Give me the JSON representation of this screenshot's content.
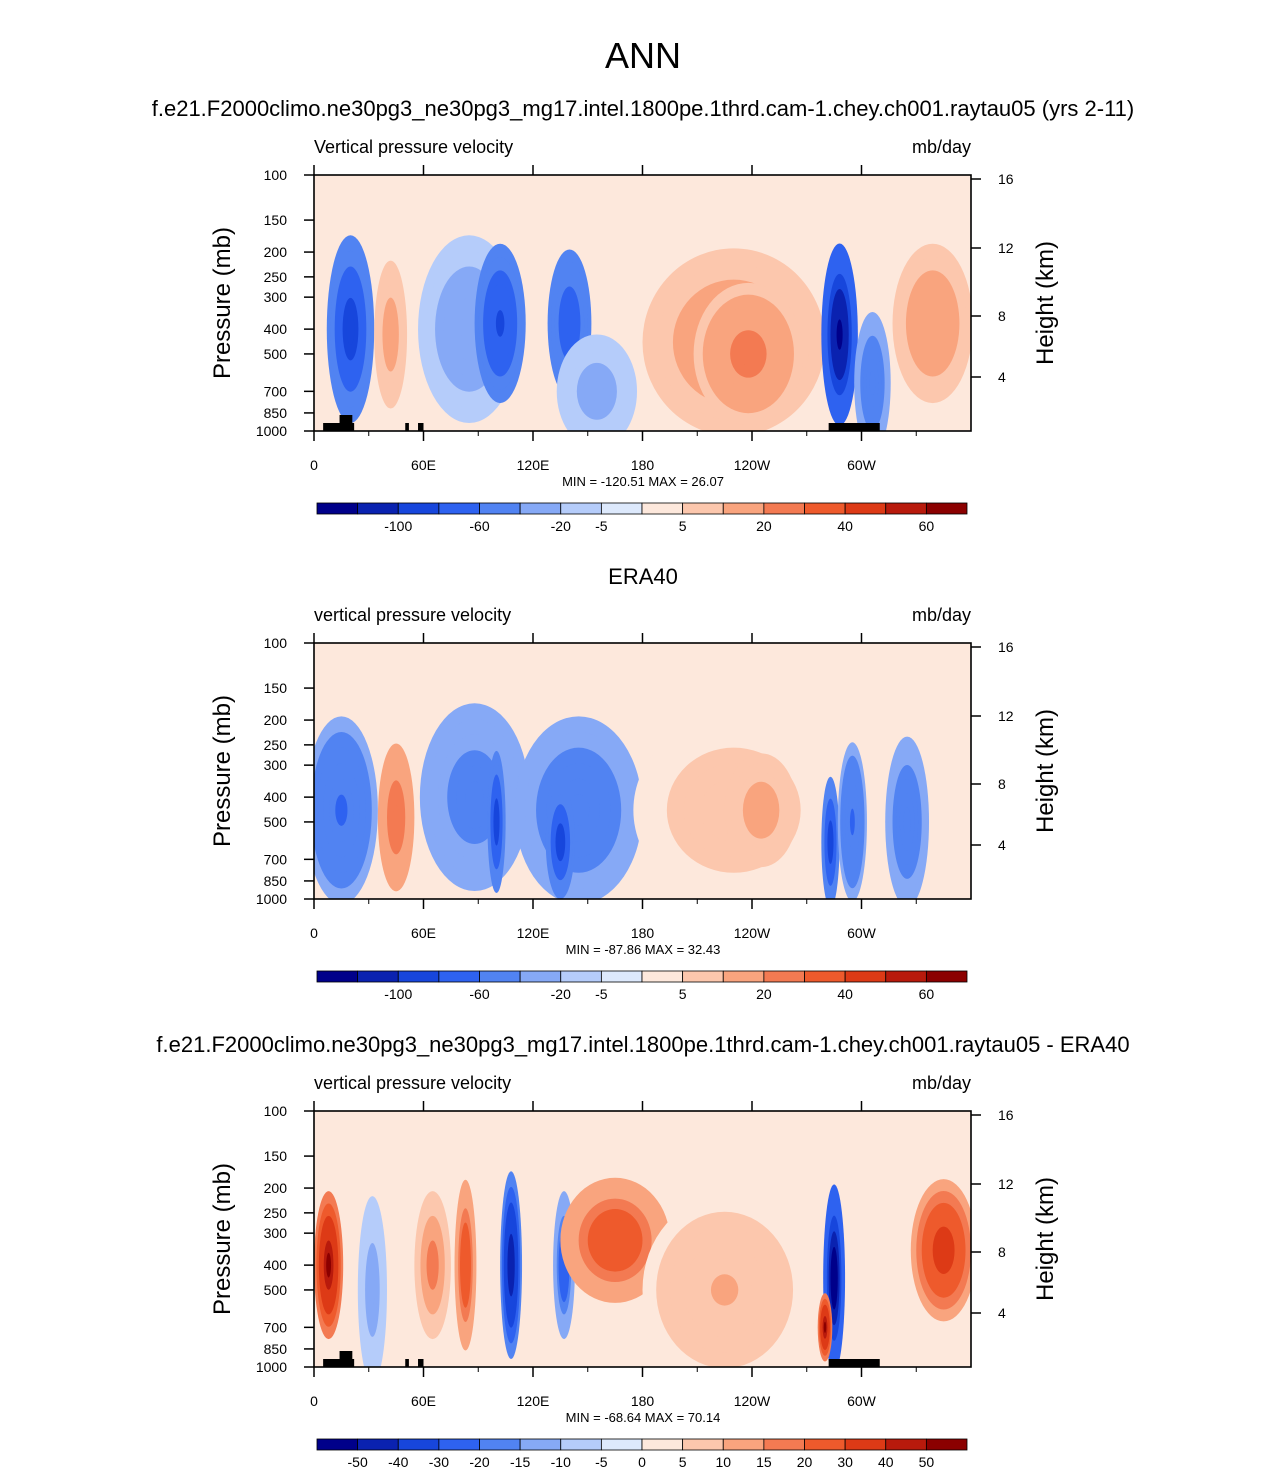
{
  "figure": {
    "title": "ANN"
  },
  "chart_data": [
    {
      "type": "heatmap",
      "title": "f.e21.F2000climo.ne30pg3_ne30pg3_mg17.intel.1800pe.1thrd.cam-1.chey.ch001.raytau05 (yrs 2-11)",
      "left_string": "Vertical pressure velocity",
      "right_string": "mb/day",
      "ylabel": "Pressure (mb)",
      "ylabel_right": "Height (km)",
      "x_ticks": [
        "0",
        "60E",
        "120E",
        "180",
        "120W",
        "60W"
      ],
      "y_ticks": [
        "100",
        "150",
        "200",
        "250",
        "300",
        "400",
        "500",
        "700",
        "850",
        "1000"
      ],
      "y_ticks_right": [
        "16",
        "12",
        "8",
        "4"
      ],
      "min_max": "MIN = -120.51  MAX =  26.07",
      "colorbar_labels": [
        "-100",
        "-60",
        "-20",
        "-5",
        "5",
        "20",
        "40",
        "60"
      ],
      "colorbar_levels": [
        -120,
        -100,
        -80,
        -60,
        -40,
        -20,
        -10,
        -5,
        0,
        5,
        10,
        20,
        30,
        40,
        50,
        60,
        70
      ],
      "colors": [
        "#00008a",
        "#0a22b0",
        "#1746dc",
        "#2e62f0",
        "#5183f2",
        "#86a9f6",
        "#b5ccfa",
        "#dde9fc",
        "#fde8dc",
        "#fcc7ad",
        "#f9a47e",
        "#f37a52",
        "#ee5a2c",
        "#dd3a16",
        "#b81a0c",
        "#8b0000"
      ],
      "blobs": [
        {
          "x": 20,
          "y": 400,
          "rx": 13,
          "ry": 330,
          "v": -75
        },
        {
          "x": 42,
          "y": 420,
          "rx": 9,
          "ry": 260,
          "v": 14
        },
        {
          "x": 85,
          "y": 400,
          "rx": 28,
          "ry": 330,
          "v": -18
        },
        {
          "x": 102,
          "y": 380,
          "rx": 14,
          "ry": 280,
          "v": -65
        },
        {
          "x": 140,
          "y": 380,
          "rx": 12,
          "ry": 260,
          "v": -55
        },
        {
          "x": 155,
          "y": 700,
          "rx": 22,
          "ry": 200,
          "v": -15
        },
        {
          "x": 230,
          "y": 450,
          "rx": 50,
          "ry": 330,
          "v": 18
        },
        {
          "x": 238,
          "y": 500,
          "rx": 30,
          "ry": 250,
          "v": 26
        },
        {
          "x": 288,
          "y": 420,
          "rx": 10,
          "ry": 320,
          "v": -110
        },
        {
          "x": 306,
          "y": 650,
          "rx": 10,
          "ry": 250,
          "v": -40
        },
        {
          "x": 339,
          "y": 380,
          "rx": 22,
          "ry": 280,
          "v": 18
        }
      ]
    },
    {
      "type": "heatmap",
      "title": "ERA40",
      "left_string": "vertical pressure velocity",
      "right_string": "mb/day",
      "ylabel": "Pressure (mb)",
      "ylabel_right": "Height (km)",
      "x_ticks": [
        "0",
        "60E",
        "120E",
        "180",
        "120W",
        "60W"
      ],
      "y_ticks": [
        "100",
        "150",
        "200",
        "250",
        "300",
        "400",
        "500",
        "700",
        "850",
        "1000"
      ],
      "y_ticks_right": [
        "16",
        "12",
        "8",
        "4"
      ],
      "min_max": "MIN = -87.86  MAX =  32.43",
      "colorbar_labels": [
        "-100",
        "-60",
        "-20",
        "-5",
        "5",
        "20",
        "40",
        "60"
      ],
      "colorbar_levels": [
        -120,
        -100,
        -80,
        -60,
        -40,
        -20,
        -10,
        -5,
        0,
        5,
        10,
        20,
        30,
        40,
        50,
        60,
        70
      ],
      "colors": [
        "#00008a",
        "#0a22b0",
        "#1746dc",
        "#2e62f0",
        "#5183f2",
        "#86a9f6",
        "#b5ccfa",
        "#dde9fc",
        "#fde8dc",
        "#fcc7ad",
        "#f9a47e",
        "#f37a52",
        "#ee5a2c",
        "#dd3a16",
        "#b81a0c",
        "#8b0000"
      ],
      "blobs": [
        {
          "x": 15,
          "y": 450,
          "rx": 20,
          "ry": 330,
          "v": -45
        },
        {
          "x": 45,
          "y": 480,
          "rx": 10,
          "ry": 260,
          "v": 28
        },
        {
          "x": 88,
          "y": 400,
          "rx": 30,
          "ry": 330,
          "v": -30
        },
        {
          "x": 100,
          "y": 500,
          "rx": 5,
          "ry": 250,
          "v": -70
        },
        {
          "x": 145,
          "y": 450,
          "rx": 35,
          "ry": 330,
          "v": -40
        },
        {
          "x": 135,
          "y": 600,
          "rx": 8,
          "ry": 200,
          "v": -80
        },
        {
          "x": 230,
          "y": 450,
          "rx": 55,
          "ry": 330,
          "v": 9
        },
        {
          "x": 245,
          "y": 450,
          "rx": 20,
          "ry": 200,
          "v": 14
        },
        {
          "x": 283,
          "y": 600,
          "rx": 5,
          "ry": 230,
          "v": -70
        },
        {
          "x": 295,
          "y": 500,
          "rx": 8,
          "ry": 280,
          "v": -45
        },
        {
          "x": 325,
          "y": 500,
          "rx": 12,
          "ry": 300,
          "v": -38
        }
      ]
    },
    {
      "type": "heatmap",
      "title": "f.e21.F2000climo.ne30pg3_ne30pg3_mg17.intel.1800pe.1thrd.cam-1.chey.ch001.raytau05 - ERA40",
      "left_string": "vertical pressure velocity",
      "right_string": "mb/day",
      "ylabel": "Pressure (mb)",
      "ylabel_right": "Height (km)",
      "x_ticks": [
        "0",
        "60E",
        "120E",
        "180",
        "120W",
        "60W"
      ],
      "y_ticks": [
        "100",
        "150",
        "200",
        "250",
        "300",
        "400",
        "500",
        "700",
        "850",
        "1000"
      ],
      "y_ticks_right": [
        "16",
        "12",
        "8",
        "4"
      ],
      "min_max": "MIN = -68.64  MAX =  70.14",
      "colorbar_labels": [
        "-50",
        "-40",
        "-30",
        "-20",
        "-15",
        "-10",
        "-5",
        "0",
        "5",
        "10",
        "15",
        "20",
        "30",
        "40",
        "50"
      ],
      "colorbar_levels": [
        -60,
        -50,
        -40,
        -30,
        -20,
        -15,
        -10,
        -5,
        0,
        5,
        10,
        15,
        20,
        30,
        40,
        50,
        60
      ],
      "colors": [
        "#00008a",
        "#0a22b0",
        "#1746dc",
        "#2e62f0",
        "#5183f2",
        "#86a9f6",
        "#b5ccfa",
        "#dde9fc",
        "#fde8dc",
        "#fcc7ad",
        "#f9a47e",
        "#f37a52",
        "#ee5a2c",
        "#dd3a16",
        "#b81a0c",
        "#8b0000"
      ],
      "blobs": [
        {
          "x": 8,
          "y": 400,
          "rx": 8,
          "ry": 260,
          "v": 50
        },
        {
          "x": 32,
          "y": 500,
          "rx": 8,
          "ry": 330,
          "v": -15
        },
        {
          "x": 65,
          "y": 400,
          "rx": 10,
          "ry": 260,
          "v": 18
        },
        {
          "x": 83,
          "y": 400,
          "rx": 6,
          "ry": 300,
          "v": 28
        },
        {
          "x": 108,
          "y": 400,
          "rx": 6,
          "ry": 330,
          "v": -50
        },
        {
          "x": 137,
          "y": 400,
          "rx": 6,
          "ry": 260,
          "v": -30
        },
        {
          "x": 165,
          "y": 320,
          "rx": 30,
          "ry": 220,
          "v": 28
        },
        {
          "x": 225,
          "y": 500,
          "rx": 45,
          "ry": 330,
          "v": 10
        },
        {
          "x": 285,
          "y": 450,
          "rx": 6,
          "ry": 330,
          "v": -60
        },
        {
          "x": 280,
          "y": 700,
          "rx": 4,
          "ry": 120,
          "v": 50
        },
        {
          "x": 345,
          "y": 350,
          "rx": 18,
          "ry": 250,
          "v": 35
        }
      ]
    }
  ]
}
